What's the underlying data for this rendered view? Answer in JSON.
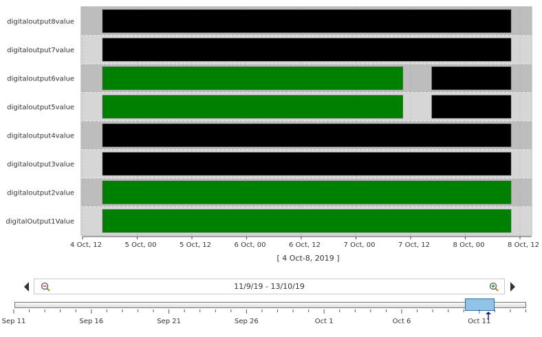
{
  "chart_data": {
    "type": "bar",
    "subtype": "timeline-state",
    "rows": [
      {
        "name": "digitaloutput8value",
        "segments": [
          {
            "state": "off",
            "from": "2019-10-04T12:00",
            "to": "2019-10-08T12:00"
          }
        ]
      },
      {
        "name": "digitaloutput7value",
        "segments": [
          {
            "state": "off",
            "from": "2019-10-04T12:00",
            "to": "2019-10-08T12:00"
          }
        ]
      },
      {
        "name": "digitaloutput6value",
        "segments": [
          {
            "state": "on",
            "from": "2019-10-04T12:00",
            "to": "2019-10-07T12:15"
          },
          {
            "state": "off",
            "from": "2019-10-07T12:15",
            "to": "2019-10-08T12:00"
          }
        ]
      },
      {
        "name": "digitaloutput5value",
        "segments": [
          {
            "state": "on",
            "from": "2019-10-04T12:00",
            "to": "2019-10-07T12:15"
          },
          {
            "state": "off",
            "from": "2019-10-07T12:15",
            "to": "2019-10-08T12:00"
          }
        ]
      },
      {
        "name": "digitaloutput4value",
        "segments": [
          {
            "state": "off",
            "from": "2019-10-04T12:00",
            "to": "2019-10-08T12:00"
          }
        ]
      },
      {
        "name": "digitaloutput3value",
        "segments": [
          {
            "state": "off",
            "from": "2019-10-04T12:00",
            "to": "2019-10-08T12:00"
          }
        ]
      },
      {
        "name": "digitaloutput2value",
        "segments": [
          {
            "state": "on",
            "from": "2019-10-04T12:00",
            "to": "2019-10-08T12:00"
          }
        ]
      },
      {
        "name": "digitalOutput1Value",
        "segments": [
          {
            "state": "on",
            "from": "2019-10-04T12:00",
            "to": "2019-10-08T12:00"
          }
        ]
      }
    ],
    "x_ticks": [
      "4 Oct, 12",
      "5 Oct, 00",
      "5 Oct, 12",
      "6 Oct, 00",
      "6 Oct, 12",
      "7 Oct, 00",
      "7 Oct, 12",
      "8 Oct, 00",
      "8 Oct, 12"
    ],
    "xlabel": "[ 4 Oct-8, 2019 ]",
    "xlim": [
      "2019-10-04T12:00",
      "2019-10-08T12:00"
    ],
    "grid": true,
    "colors": {
      "on": "#008000",
      "off": "#000000"
    }
  },
  "navigator": {
    "range_text": "11/9/19 - 13/10/19",
    "ticks": [
      "Sep 11",
      "Sep 16",
      "Sep 21",
      "Sep 26",
      "Oct 1",
      "Oct 6",
      "Oct 11"
    ],
    "zoom_out_icon": "zoom-out-icon",
    "zoom_in_icon": "zoom-in-icon"
  }
}
